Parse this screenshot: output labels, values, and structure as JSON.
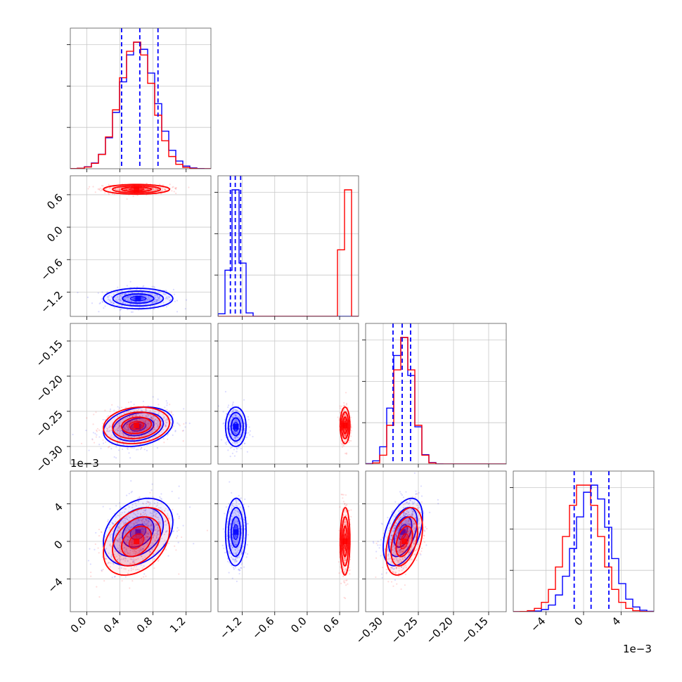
{
  "chart_data": {
    "type": "corner",
    "title": "",
    "parameters": [
      "",
      "",
      "",
      ""
    ],
    "axis_ranges": [
      [
        -0.2,
        1.5
      ],
      [
        -1.65,
        0.95
      ],
      [
        -0.325,
        -0.125
      ],
      [
        -0.0075,
        0.0075
      ]
    ],
    "ticks": {
      "p0": {
        "values": [
          0.0,
          0.4,
          0.8,
          1.2
        ],
        "labels": [
          "0.0",
          "0.4",
          "0.8",
          "1.2"
        ]
      },
      "p1": {
        "values": [
          -1.2,
          -0.6,
          0.0,
          0.6
        ],
        "labels": [
          "−1.2",
          "−0.6",
          "0.0",
          "0.6"
        ]
      },
      "p2_y": {
        "values": [
          -0.3,
          -0.25,
          -0.2,
          -0.15
        ],
        "labels": [
          "−0.30",
          "−0.25",
          "−0.20",
          "−0.15"
        ]
      },
      "p2_x": {
        "values": [
          -0.3,
          -0.25,
          -0.2,
          -0.15
        ],
        "labels": [
          "−0.30",
          "−0.25",
          "−0.20",
          "−0.15"
        ]
      },
      "p3": {
        "values": [
          -0.004,
          0.0,
          0.004
        ],
        "labels": [
          "−4",
          "0",
          "4"
        ]
      }
    },
    "offset_text": "1e−3",
    "grid": true,
    "series": [
      {
        "color": "#0000ff",
        "means": [
          0.62,
          -1.32,
          -0.272,
          0.001
        ],
        "sigmas": [
          0.21,
          0.095,
          0.014,
          0.0018
        ],
        "correlations": {
          "0-2": 0.25,
          "0-3": 0.3,
          "1-3": 0.05,
          "2-3": 0.45
        },
        "quantiles": [
          [
            0.42,
            0.64,
            0.86
          ],
          [
            -1.42,
            -1.33,
            -1.23
          ],
          [
            -0.286,
            -0.273,
            -0.261
          ],
          [
            -0.001,
            0.0008,
            0.0027
          ]
        ]
      },
      {
        "color": "#ff0000",
        "means": [
          0.6,
          0.7,
          -0.27,
          0.0
        ],
        "sigmas": [
          0.2,
          0.045,
          0.013,
          0.0018
        ],
        "correlations": {
          "0-2": 0.15,
          "0-3": 0.35,
          "1-3": 0.05,
          "2-3": 0.4
        },
        "quantiles": []
      }
    ]
  }
}
